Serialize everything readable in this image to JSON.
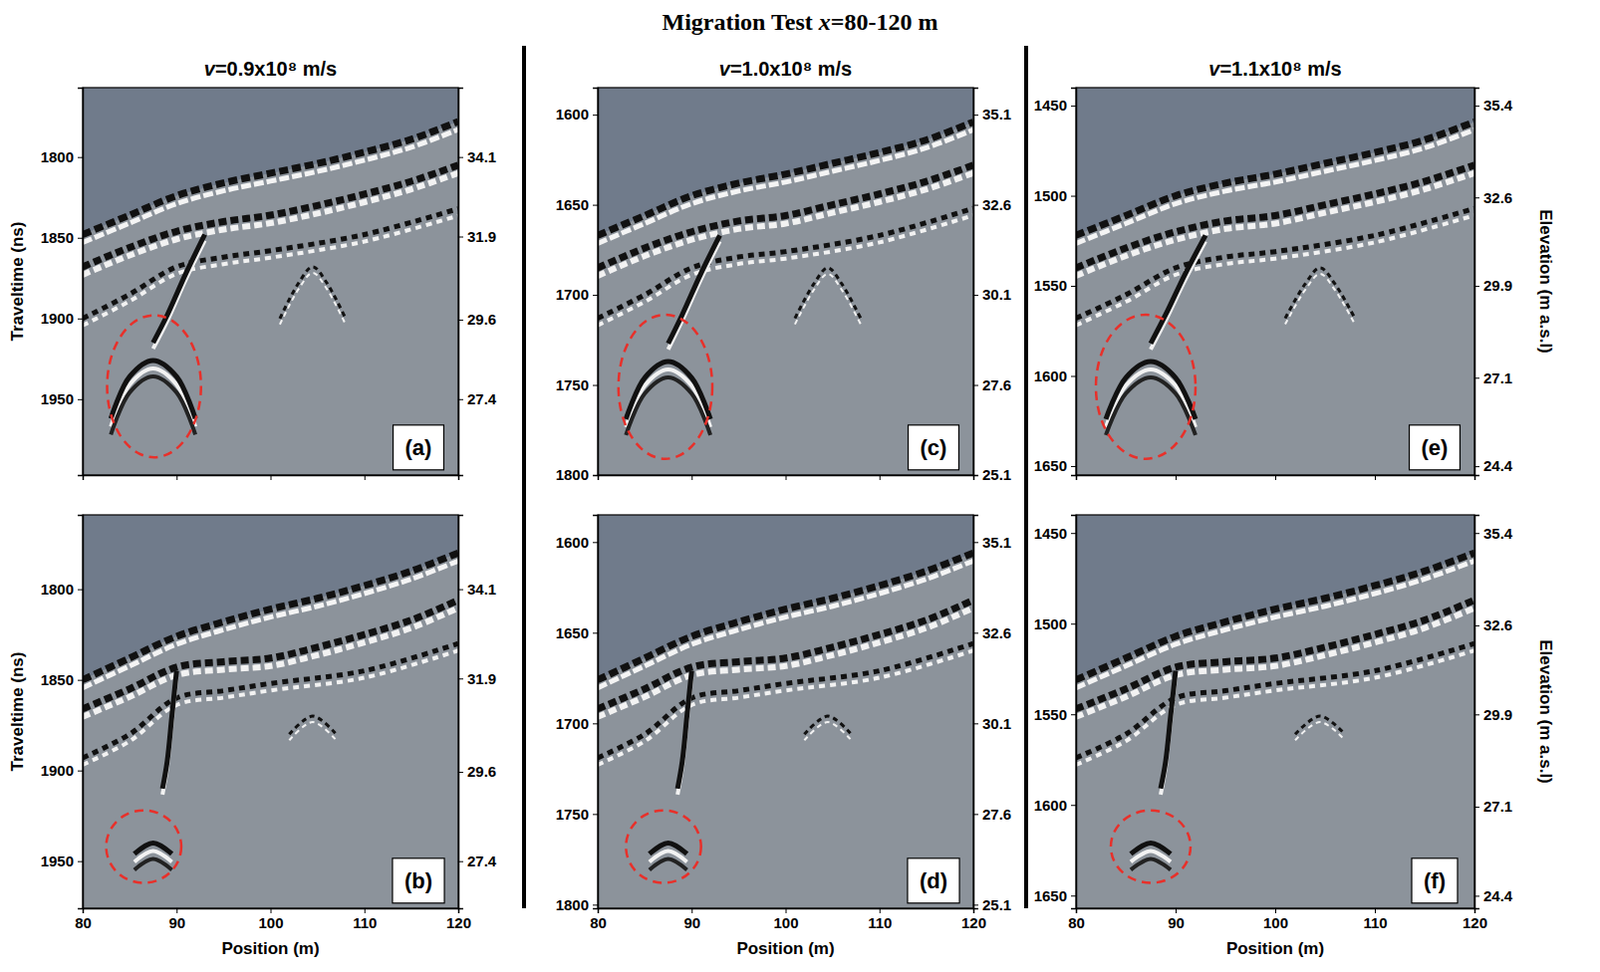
{
  "figure": {
    "title": "Migration Test x=80-120 m",
    "column_titles": [
      "v=0.9x10⁸ m/s",
      "v=1.0x10⁸ m/s",
      "v=1.1x10⁸ m/s"
    ]
  },
  "chart_data": [
    {
      "type": "radargram",
      "label": "(a)",
      "ylabel": "Traveltime (ns)",
      "tick_labels": "y",
      "xlim": [
        80,
        120
      ],
      "xticks": [
        80,
        90,
        100,
        110,
        120
      ],
      "ylim": [
        1757,
        1997
      ],
      "yticks": [
        1800,
        1850,
        1900,
        1950
      ],
      "y2lim": [
        25.3,
        36.02
      ],
      "y2ticks": [
        34.1,
        31.9,
        29.6,
        27.4
      ],
      "surface": {
        "x": [
          80,
          85,
          90,
          95,
          100,
          105,
          110,
          115,
          120
        ],
        "t": [
          1848,
          1836,
          1824,
          1816,
          1810,
          1804,
          1797,
          1789,
          1778
        ]
      },
      "reflectors": [
        {
          "x": [
            80,
            85,
            90,
            95,
            100,
            105,
            110,
            115,
            120
          ],
          "t": [
            1868,
            1856,
            1846,
            1840,
            1836,
            1830,
            1823,
            1815,
            1805
          ]
        },
        {
          "x": [
            80,
            85,
            90,
            95,
            100,
            110,
            120
          ],
          "t": [
            1900,
            1885,
            1868,
            1862,
            1858,
            1848,
            1832
          ]
        },
        {
          "x": [
            93,
            91,
            89,
            87.5
          ],
          "t": [
            1848,
            1872,
            1898,
            1915
          ]
        },
        {
          "x": [
            83,
            85,
            87.5,
            90,
            92
          ],
          "t": [
            1962,
            1936,
            1926,
            1936,
            1962
          ]
        },
        {
          "x": [
            101,
            103,
            104.5,
            106,
            108
          ],
          "t": [
            1900,
            1878,
            1868,
            1878,
            1900
          ]
        }
      ],
      "circle": {
        "x": 87.6,
        "t": 1942,
        "rx": 5,
        "rt": 44
      }
    },
    {
      "type": "radargram",
      "label": "(b)",
      "ylabel": "Traveltime (ns)",
      "xlabel": "Position (m)",
      "xlim": [
        80,
        120
      ],
      "xticks": [
        80,
        90,
        100,
        110,
        120
      ],
      "ylim": [
        1759,
        1976
      ],
      "yticks": [
        1800,
        1850,
        1900,
        1950
      ],
      "y2lim": [
        26.24,
        35.93
      ],
      "y2ticks": [
        34.1,
        31.9,
        29.6,
        27.4
      ],
      "surface": {
        "x": [
          80,
          85,
          90,
          95,
          100,
          105,
          110,
          115,
          120
        ],
        "t": [
          1850,
          1838,
          1826,
          1818,
          1811,
          1805,
          1798,
          1790,
          1780
        ]
      },
      "reflectors": [
        {
          "x": [
            80,
            85,
            90,
            95,
            100,
            105,
            110,
            115,
            120
          ],
          "t": [
            1866,
            1855,
            1843,
            1840,
            1838,
            1832,
            1825,
            1817,
            1806
          ]
        },
        {
          "x": [
            80,
            85,
            90,
            95,
            100,
            110,
            120
          ],
          "t": [
            1893,
            1880,
            1860,
            1856,
            1852,
            1845,
            1830
          ]
        },
        {
          "x": [
            90,
            89.5,
            89,
            88.5
          ],
          "t": [
            1845,
            1870,
            1895,
            1910
          ]
        },
        {
          "x": [
            85.5,
            87.5,
            89.5
          ],
          "t": [
            1946,
            1940,
            1946
          ]
        },
        {
          "x": [
            102,
            104.5,
            107
          ],
          "t": [
            1880,
            1870,
            1880
          ]
        }
      ],
      "circle": {
        "x": 86.5,
        "t": 1942,
        "rx": 4,
        "rt": 20
      }
    },
    {
      "type": "radargram",
      "label": "(c)",
      "tick_labels": "y",
      "xlim": [
        80,
        120
      ],
      "xticks": [
        80,
        90,
        100,
        110,
        120
      ],
      "ylim": [
        1585,
        1800
      ],
      "yticks": [
        1600,
        1650,
        1700,
        1750,
        1800
      ],
      "y2lim": [
        25.1,
        35.85
      ],
      "y2ticks": [
        35.1,
        32.6,
        30.1,
        27.6,
        25.1
      ],
      "surface": {
        "x": [
          80,
          85,
          90,
          95,
          100,
          105,
          110,
          115,
          120
        ],
        "t": [
          1667,
          1656,
          1645,
          1638,
          1633,
          1627,
          1621,
          1614,
          1604
        ]
      },
      "reflectors": [
        {
          "x": [
            80,
            85,
            90,
            95,
            100,
            105,
            110,
            115,
            120
          ],
          "t": [
            1685,
            1674,
            1665,
            1659,
            1656,
            1650,
            1644,
            1637,
            1628
          ]
        },
        {
          "x": [
            80,
            85,
            90,
            95,
            100,
            110,
            120
          ],
          "t": [
            1713,
            1700,
            1685,
            1679,
            1676,
            1667,
            1652
          ]
        },
        {
          "x": [
            93,
            91,
            89,
            87.5
          ],
          "t": [
            1667,
            1688,
            1711,
            1727
          ]
        },
        {
          "x": [
            83,
            85,
            87.5,
            90,
            92
          ],
          "t": [
            1769,
            1746,
            1737,
            1746,
            1769
          ]
        },
        {
          "x": [
            101,
            103,
            104.5,
            106,
            108
          ],
          "t": [
            1713,
            1694,
            1685,
            1694,
            1713
          ]
        }
      ],
      "circle": {
        "x": 87.2,
        "t": 1751,
        "rx": 5,
        "rt": 40
      }
    },
    {
      "type": "radargram",
      "label": "(d)",
      "xlabel": "Position (m)",
      "xlim": [
        80,
        120
      ],
      "xticks": [
        80,
        90,
        100,
        110,
        120
      ],
      "ylim": [
        1585,
        1802
      ],
      "yticks": [
        1600,
        1650,
        1700,
        1750,
        1800
      ],
      "y2lim": [
        25.0,
        35.85
      ],
      "y2ticks": [
        35.1,
        32.6,
        30.1,
        27.6,
        25.1
      ],
      "surface": {
        "x": [
          80,
          85,
          90,
          95,
          100,
          105,
          110,
          115,
          120
        ],
        "t": [
          1676,
          1664,
          1652,
          1644,
          1637,
          1631,
          1624,
          1616,
          1606
        ]
      },
      "reflectors": [
        {
          "x": [
            80,
            85,
            90,
            95,
            100,
            105,
            110,
            115,
            120
          ],
          "t": [
            1692,
            1681,
            1669,
            1666,
            1664,
            1658,
            1651,
            1643,
            1632
          ]
        },
        {
          "x": [
            80,
            85,
            90,
            95,
            100,
            110,
            120
          ],
          "t": [
            1719,
            1706,
            1686,
            1682,
            1678,
            1671,
            1656
          ]
        },
        {
          "x": [
            90,
            89.5,
            89,
            88.5
          ],
          "t": [
            1671,
            1696,
            1721,
            1736
          ]
        },
        {
          "x": [
            85.5,
            87.5,
            89.5
          ],
          "t": [
            1772,
            1766,
            1772
          ]
        },
        {
          "x": [
            102,
            104.5,
            107
          ],
          "t": [
            1706,
            1696,
            1706
          ]
        }
      ],
      "circle": {
        "x": 87,
        "t": 1768,
        "rx": 4,
        "rt": 20
      }
    },
    {
      "type": "radargram",
      "label": "(e)",
      "y2label": "Elevation (m a.s.l)",
      "tick_labels": "y",
      "xlim": [
        80,
        120
      ],
      "xticks": [
        80,
        90,
        100,
        110,
        120
      ],
      "ylim": [
        1440,
        1655
      ],
      "yticks": [
        1450,
        1500,
        1550,
        1600,
        1650
      ],
      "y2lim": [
        24.13,
        35.95
      ],
      "y2ticks": [
        35.4,
        32.6,
        29.9,
        27.1,
        24.4
      ],
      "surface": {
        "x": [
          80,
          85,
          90,
          95,
          100,
          105,
          110,
          115,
          120
        ],
        "t": [
          1522,
          1511,
          1500,
          1493,
          1488,
          1482,
          1476,
          1469,
          1459
        ]
      },
      "reflectors": [
        {
          "x": [
            80,
            85,
            90,
            95,
            100,
            105,
            110,
            115,
            120
          ],
          "t": [
            1540,
            1529,
            1520,
            1514,
            1511,
            1505,
            1499,
            1492,
            1483
          ]
        },
        {
          "x": [
            80,
            85,
            90,
            95,
            100,
            110,
            120
          ],
          "t": [
            1568,
            1555,
            1540,
            1534,
            1531,
            1522,
            1507
          ]
        },
        {
          "x": [
            93,
            91,
            89,
            87.5
          ],
          "t": [
            1522,
            1543,
            1566,
            1582
          ]
        },
        {
          "x": [
            83,
            85,
            87.5,
            90,
            92
          ],
          "t": [
            1624,
            1601,
            1592,
            1601,
            1624
          ]
        },
        {
          "x": [
            101,
            103,
            104.5,
            106,
            108
          ],
          "t": [
            1568,
            1549,
            1540,
            1549,
            1568
          ]
        }
      ],
      "circle": {
        "x": 87,
        "t": 1606,
        "rx": 5,
        "rt": 40
      }
    },
    {
      "type": "radargram",
      "label": "(f)",
      "y2label": "Elevation (m a.s.l)",
      "xlabel": "Position (m)",
      "xlim": [
        80,
        120
      ],
      "xticks": [
        80,
        90,
        100,
        110,
        120
      ],
      "ylim": [
        1440,
        1657
      ],
      "yticks": [
        1450,
        1500,
        1550,
        1600,
        1650
      ],
      "y2lim": [
        24.02,
        35.95
      ],
      "y2ticks": [
        35.4,
        32.6,
        29.9,
        27.1,
        24.4
      ],
      "surface": {
        "x": [
          80,
          85,
          90,
          95,
          100,
          105,
          110,
          115,
          120
        ],
        "t": [
          1531,
          1519,
          1507,
          1499,
          1492,
          1486,
          1479,
          1471,
          1461
        ]
      },
      "reflectors": [
        {
          "x": [
            80,
            85,
            90,
            95,
            100,
            105,
            110,
            115,
            120
          ],
          "t": [
            1547,
            1536,
            1524,
            1521,
            1519,
            1513,
            1506,
            1498,
            1487
          ]
        },
        {
          "x": [
            80,
            85,
            90,
            95,
            100,
            110,
            120
          ],
          "t": [
            1574,
            1561,
            1541,
            1537,
            1533,
            1526,
            1511
          ]
        },
        {
          "x": [
            90,
            89.5,
            89,
            88.5
          ],
          "t": [
            1526,
            1551,
            1576,
            1591
          ]
        },
        {
          "x": [
            85.5,
            87.5,
            89.5
          ],
          "t": [
            1627,
            1621,
            1627
          ]
        },
        {
          "x": [
            102,
            104.5,
            107
          ],
          "t": [
            1561,
            1551,
            1561
          ]
        }
      ],
      "circle": {
        "x": 87.5,
        "t": 1623,
        "rx": 4,
        "rt": 20
      }
    }
  ]
}
